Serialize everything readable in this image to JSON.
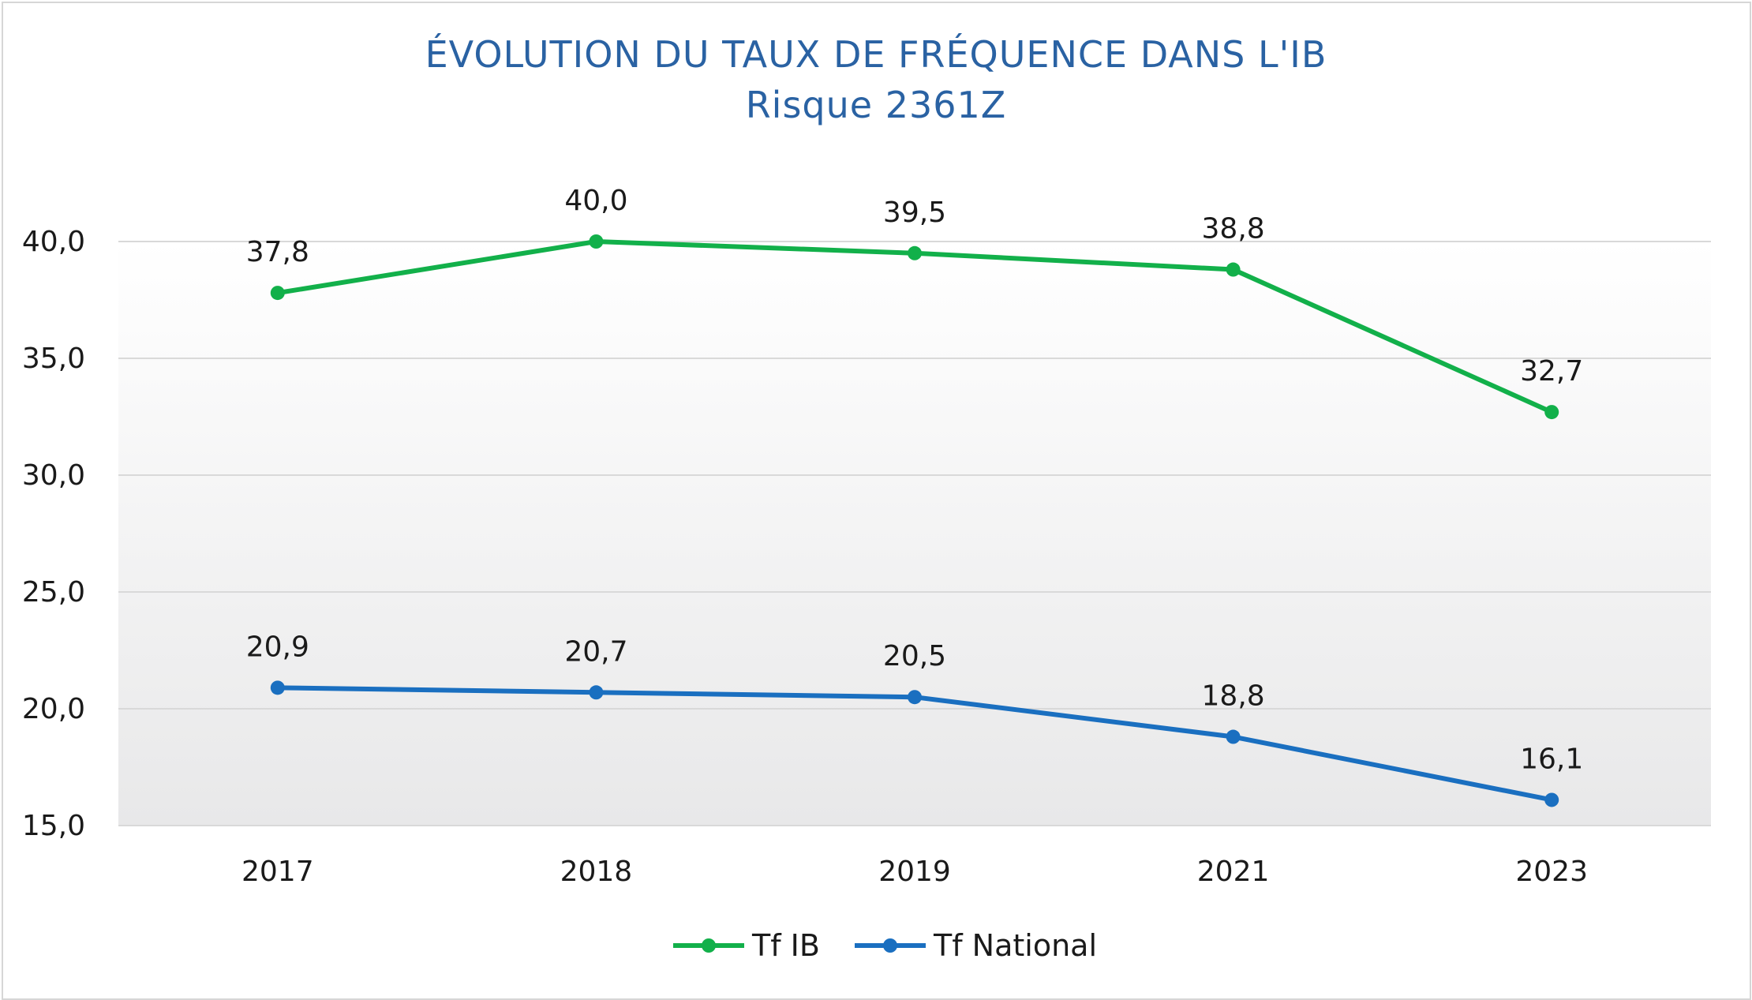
{
  "chart_data": {
    "type": "line",
    "title": "ÉVOLUTION DU TAUX DE FRÉQUENCE DANS L'IB",
    "subtitle": "Risque 2361Z",
    "categories": [
      "2017",
      "2018",
      "2019",
      "2021",
      "2023"
    ],
    "series": [
      {
        "name": "Tf IB",
        "color": "#12b04a",
        "values": [
          37.8,
          40.0,
          39.5,
          38.8,
          32.7
        ],
        "labels": [
          "37,8",
          "40,0",
          "39,5",
          "38,8",
          "32,7"
        ]
      },
      {
        "name": "Tf National",
        "color": "#1a6fc0",
        "values": [
          20.9,
          20.7,
          20.5,
          18.8,
          16.1
        ],
        "labels": [
          "20,9",
          "20,7",
          "20,5",
          "18,8",
          "16,1"
        ]
      }
    ],
    "ylim": [
      15,
      40
    ],
    "yticks": [
      15,
      20,
      25,
      30,
      35,
      40
    ],
    "ytick_labels": [
      "15,0",
      "20,0",
      "25,0",
      "30,0",
      "35,0",
      "40,0"
    ],
    "grid": true,
    "legend_position": "bottom-center",
    "xlabel": "",
    "ylabel": ""
  }
}
